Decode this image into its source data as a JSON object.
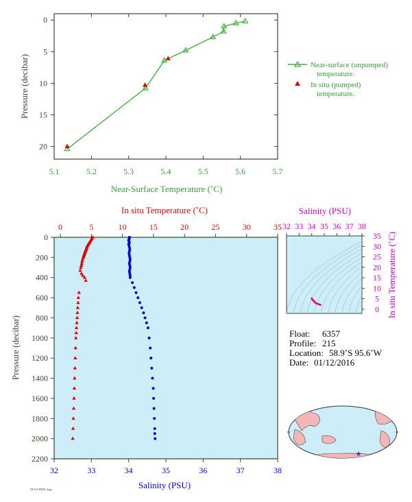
{
  "colors": {
    "green": "#40b040",
    "green_text": "#3a9a3a",
    "red": "#e00000",
    "blue": "#0000dd",
    "magenta": "#cc00cc",
    "axis_dark": "#2e4a2e",
    "panel_bg": "#cdeef8"
  },
  "chart_data": [
    {
      "type": "line",
      "xlabel": "Near-Surface Temperature (˚C)",
      "ylabel": "Pressure (decibar)",
      "xlim": [
        5.1,
        5.7
      ],
      "ylim": [
        22,
        -1
      ],
      "xticks": [
        "5.1",
        "5.2",
        "5.3",
        "5.4",
        "5.5",
        "5.6",
        "5.7"
      ],
      "yticks": [
        "0",
        "5",
        "10",
        "15",
        "20"
      ],
      "legend_position": "right",
      "series": [
        {
          "name": "Near-surface (unpumped) temperature.",
          "marker": "triangle-open",
          "color": "#40b040",
          "x": [
            5.613,
            5.588,
            5.556,
            5.555,
            5.526,
            5.453,
            5.396,
            5.345,
            5.135
          ],
          "y": [
            0.2,
            0.5,
            1.0,
            1.8,
            2.7,
            4.8,
            6.4,
            10.8,
            20.4
          ]
        },
        {
          "name": "In situ (pumped) temperature.",
          "marker": "triangle-filled",
          "color": "#e00000",
          "x": [
            5.406,
            5.344,
            5.135
          ],
          "y": [
            6.1,
            10.3,
            20.0
          ]
        }
      ]
    },
    {
      "type": "scatter",
      "top_xlabel": "In situ Temperature (˚C)",
      "bottom_xlabel": "Salinity (PSU)",
      "ylabel": "Pressure (decibar)",
      "temp_xlim": [
        -1,
        35
      ],
      "sal_xlim": [
        32,
        38
      ],
      "ylim": [
        2200,
        0
      ],
      "temp_ticks": [
        "0",
        "5",
        "10",
        "15",
        "20",
        "25",
        "30",
        "35"
      ],
      "sal_ticks": [
        "32",
        "33",
        "34",
        "35",
        "36",
        "37",
        "38"
      ],
      "p_ticks": [
        "0",
        "200",
        "400",
        "600",
        "800",
        "1000",
        "1200",
        "1400",
        "1600",
        "1800",
        "2000",
        "2200"
      ],
      "series": [
        {
          "name": "In situ Temperature (˚C)",
          "color": "#e00000",
          "marker": "triangle-filled",
          "x": [
            5.2,
            5.1,
            5.0,
            4.9,
            4.8,
            4.7,
            4.6,
            4.5,
            4.4,
            4.3,
            4.25,
            4.2,
            4.15,
            4.1,
            4.0,
            3.95,
            3.9,
            3.85,
            3.8,
            3.75,
            3.7,
            3.6,
            3.5,
            3.45,
            3.4,
            3.3,
            3.2,
            3.4,
            3.6,
            3.9,
            4.1,
            3.0,
            2.9,
            2.85,
            2.8,
            2.75,
            2.7,
            2.65,
            2.6,
            2.55,
            2.5,
            2.45,
            2.4,
            2.35,
            2.3,
            2.25,
            2.2,
            2.15,
            2.1,
            2.05,
            2.0
          ],
          "y": [
            0,
            10,
            20,
            30,
            40,
            50,
            60,
            70,
            80,
            90,
            100,
            110,
            120,
            130,
            140,
            150,
            160,
            170,
            180,
            190,
            200,
            220,
            240,
            260,
            280,
            300,
            330,
            360,
            380,
            400,
            430,
            550,
            600,
            650,
            700,
            750,
            800,
            850,
            900,
            950,
            1000,
            1100,
            1200,
            1300,
            1400,
            1500,
            1600,
            1700,
            1800,
            1900,
            2000
          ]
        },
        {
          "name": "Salinity (PSU)",
          "color": "#0000dd",
          "marker": "dot",
          "x": [
            34.02,
            34.02,
            34.01,
            34.0,
            34.01,
            34.02,
            34.01,
            34.0,
            34.01,
            34.02,
            34.03,
            34.02,
            34.01,
            34.02,
            34.03,
            34.04,
            34.03,
            34.02,
            34.03,
            34.04,
            34.03,
            34.02,
            34.03,
            34.04,
            34.04,
            34.1,
            34.15,
            34.2,
            34.25,
            34.3,
            34.35,
            34.4,
            34.44,
            34.48,
            34.52,
            34.55,
            34.58,
            34.6,
            34.62,
            34.64,
            34.66,
            34.67,
            34.68,
            34.69,
            34.7,
            34.7,
            34.71
          ],
          "y": [
            0,
            10,
            20,
            30,
            40,
            50,
            60,
            70,
            80,
            100,
            120,
            140,
            160,
            180,
            200,
            220,
            240,
            260,
            280,
            300,
            320,
            340,
            360,
            380,
            400,
            450,
            500,
            550,
            600,
            650,
            700,
            750,
            800,
            850,
            900,
            1000,
            1100,
            1200,
            1300,
            1400,
            1500,
            1600,
            1700,
            1800,
            1900,
            1950,
            2000
          ]
        }
      ]
    },
    {
      "type": "scatter",
      "top_xlabel": "Salinity (PSU)",
      "right_ylabel": "In situ Temperature (˚C)",
      "xlim": [
        32,
        38
      ],
      "ylim": [
        -2,
        35
      ],
      "xticks": [
        "32",
        "33",
        "34",
        "35",
        "36",
        "37",
        "38"
      ],
      "yticks": [
        "0",
        "5",
        "10",
        "15",
        "20",
        "25",
        "30",
        "35"
      ],
      "series": [
        {
          "name": "T-S profile",
          "color": "#dd1177",
          "x": [
            34.0,
            34.02,
            34.05,
            34.1,
            34.15,
            34.2,
            34.25,
            34.3,
            34.4,
            34.5,
            34.6,
            34.68,
            34.7,
            34.5,
            34.2,
            34.05
          ],
          "y": [
            5.2,
            4.9,
            4.6,
            4.3,
            4.0,
            3.8,
            3.4,
            3.0,
            2.7,
            2.5,
            2.3,
            2.1,
            2.0,
            2.6,
            3.6,
            4.8
          ]
        }
      ]
    }
  ],
  "legend": {
    "unpumped_line1": "Near-surface (unpumped)",
    "unpumped_line2": "temperature.",
    "pumped_line1": "In situ (pumped)",
    "pumped_line2": "temperature."
  },
  "info": {
    "float_label": "Float:",
    "float_value": "6357",
    "profile_label": "Profile:",
    "profile_value": "215",
    "location_label": "Location:",
    "location_value": "58.9˚S  95.6˚W",
    "date_label": "Date:",
    "date_value": "01/12/2016"
  },
  "footer_text": "NOAA/PMEL Argo"
}
